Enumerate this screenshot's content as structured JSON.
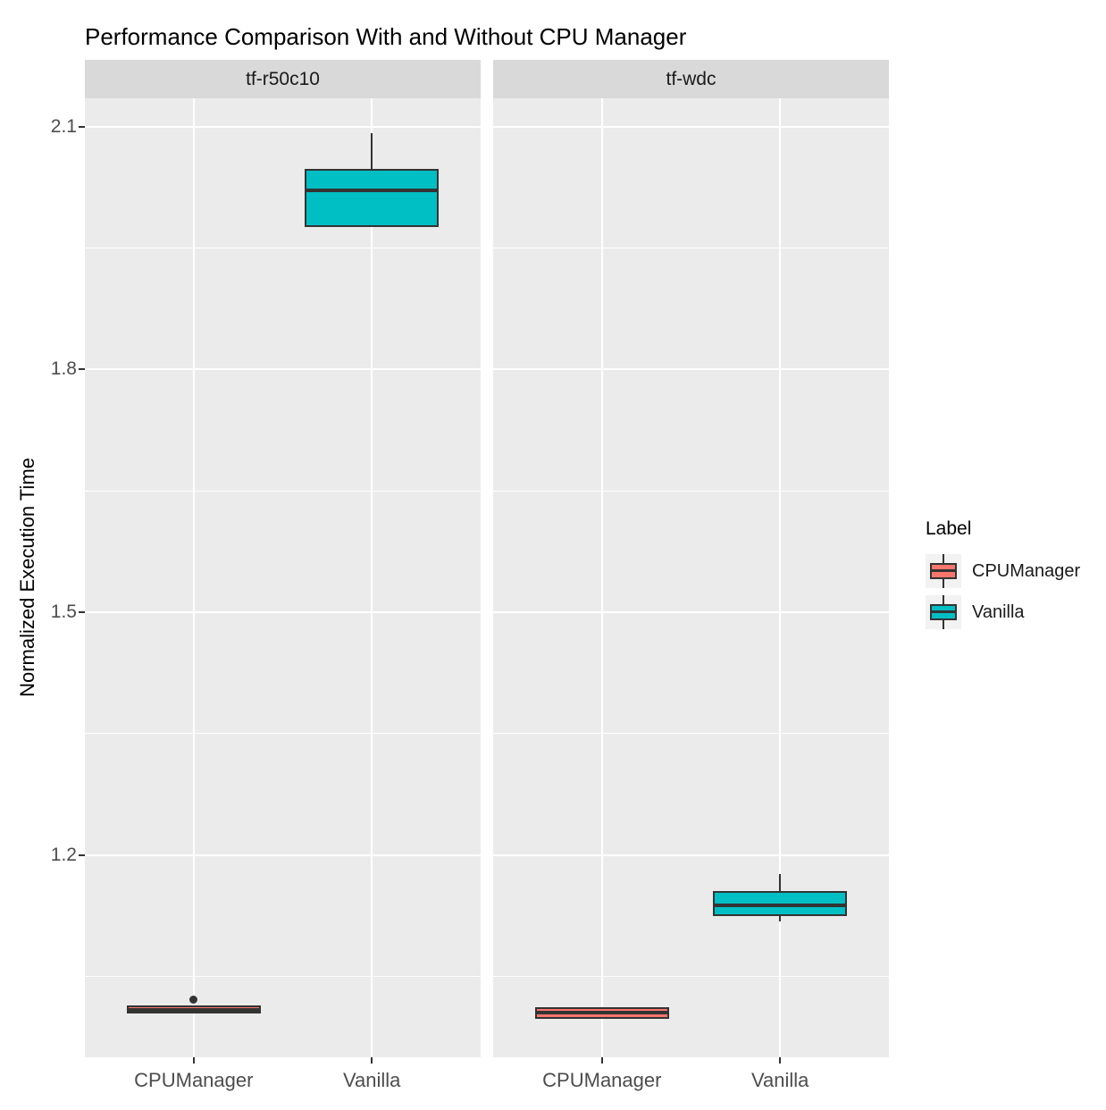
{
  "title": "Performance Comparison With and Without CPU Manager",
  "chart_data": {
    "type": "boxplot",
    "title": "Performance Comparison With and Without CPU Manager",
    "ylabel": "Normalized Execution Time",
    "xlabel": "",
    "x_categories": [
      "CPUManager",
      "Vanilla"
    ],
    "y_major_ticks": [
      1.2,
      1.5,
      1.8,
      2.1
    ],
    "y_minor_gridlines": [
      1.05,
      1.35,
      1.65,
      1.95
    ],
    "ylim": [
      0.95,
      2.135
    ],
    "grid": true,
    "legend": {
      "title": "Label",
      "position": "right",
      "entries": [
        {
          "label": "CPUManager",
          "color": "#F8766D"
        },
        {
          "label": "Vanilla",
          "color": "#00BFC4"
        }
      ]
    },
    "series_colors": {
      "CPUManager": "#F8766D",
      "Vanilla": "#00BFC4"
    },
    "facets": [
      {
        "label": "tf-r50c10",
        "boxes": [
          {
            "category": "CPUManager",
            "series": "CPUManager",
            "whisker_low": 1.004,
            "q1": 1.006,
            "median": 1.009,
            "q3": 1.012,
            "whisker_high": 1.013,
            "outliers": [
              1.021
            ]
          },
          {
            "category": "Vanilla",
            "series": "Vanilla",
            "whisker_low": 1.978,
            "q1": 1.978,
            "median": 2.021,
            "q3": 2.046,
            "whisker_high": 2.092,
            "outliers": []
          }
        ]
      },
      {
        "label": "tf-wdc",
        "boxes": [
          {
            "category": "CPUManager",
            "series": "CPUManager",
            "whisker_low": 0.998,
            "q1": 1.0,
            "median": 1.005,
            "q3": 1.01,
            "whisker_high": 1.012,
            "outliers": []
          },
          {
            "category": "Vanilla",
            "series": "Vanilla",
            "whisker_low": 1.118,
            "q1": 1.127,
            "median": 1.138,
            "q3": 1.153,
            "whisker_high": 1.176,
            "outliers": []
          }
        ]
      }
    ]
  },
  "colors": {
    "panel_bg": "#EBEBEB",
    "strip_bg": "#D9D9D9",
    "gridline": "#FFFFFF",
    "box_border": "#333333",
    "cpumanager": "#F8766D",
    "vanilla": "#00BFC4",
    "tick_text": "#4D4D4D",
    "title_text": "#000000",
    "legend_key_bg": "#F2F2F2"
  }
}
